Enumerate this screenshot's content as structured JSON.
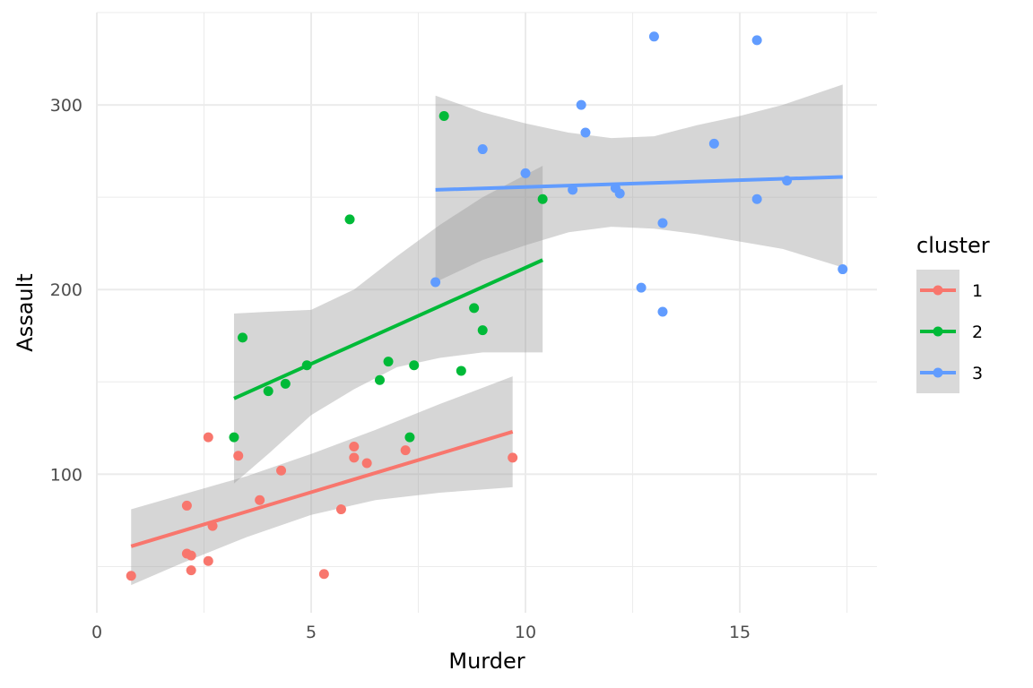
{
  "chart_data": {
    "type": "scatter",
    "xlabel": "Murder",
    "ylabel": "Assault",
    "xlim": [
      0,
      18.2
    ],
    "ylim": [
      25,
      350
    ],
    "x_ticks": [
      0,
      5,
      10,
      15
    ],
    "y_ticks": [
      100,
      200,
      300
    ],
    "grid": true,
    "legend": {
      "title": "cluster",
      "position": "right"
    },
    "series": [
      {
        "name": "1",
        "color": "#F8766D",
        "points": [
          [
            0.8,
            45
          ],
          [
            2.1,
            57
          ],
          [
            2.2,
            56
          ],
          [
            2.2,
            48
          ],
          [
            2.1,
            83
          ],
          [
            2.6,
            53
          ],
          [
            2.7,
            72
          ],
          [
            2.6,
            120
          ],
          [
            3.3,
            110
          ],
          [
            3.8,
            86
          ],
          [
            4.3,
            102
          ],
          [
            5.3,
            46
          ],
          [
            5.7,
            81
          ],
          [
            6.0,
            115
          ],
          [
            6.0,
            109
          ],
          [
            6.3,
            106
          ],
          [
            7.2,
            113
          ],
          [
            9.7,
            109
          ]
        ],
        "fit_line": [
          [
            0.8,
            61
          ],
          [
            9.7,
            123
          ]
        ],
        "ci_upper": [
          [
            0.8,
            81
          ],
          [
            2.0,
            89
          ],
          [
            3.5,
            99
          ],
          [
            5.0,
            111
          ],
          [
            6.5,
            124
          ],
          [
            8.0,
            138
          ],
          [
            9.7,
            153
          ]
        ],
        "ci_lower": [
          [
            0.8,
            40
          ],
          [
            2.0,
            52
          ],
          [
            3.5,
            66
          ],
          [
            5.0,
            78
          ],
          [
            6.5,
            86
          ],
          [
            8.0,
            90
          ],
          [
            9.7,
            93
          ]
        ]
      },
      {
        "name": "2",
        "color": "#00BA38",
        "points": [
          [
            3.2,
            120
          ],
          [
            3.4,
            174
          ],
          [
            4.0,
            145
          ],
          [
            4.4,
            149
          ],
          [
            4.9,
            159
          ],
          [
            5.9,
            238
          ],
          [
            6.6,
            151
          ],
          [
            6.8,
            161
          ],
          [
            7.3,
            120
          ],
          [
            7.4,
            159
          ],
          [
            8.1,
            294
          ],
          [
            8.5,
            156
          ],
          [
            8.8,
            190
          ],
          [
            9.0,
            178
          ],
          [
            10.4,
            249
          ]
        ],
        "fit_line": [
          [
            3.2,
            141
          ],
          [
            10.4,
            216
          ]
        ],
        "ci_upper": [
          [
            3.2,
            187
          ],
          [
            4.0,
            188
          ],
          [
            5.0,
            189
          ],
          [
            6.0,
            200
          ],
          [
            7.0,
            218
          ],
          [
            8.0,
            235
          ],
          [
            9.0,
            250
          ],
          [
            10.4,
            267
          ]
        ],
        "ci_lower": [
          [
            3.2,
            95
          ],
          [
            4.0,
            111
          ],
          [
            5.0,
            132
          ],
          [
            6.0,
            146
          ],
          [
            7.0,
            158
          ],
          [
            8.0,
            163
          ],
          [
            9.0,
            166
          ],
          [
            10.4,
            166
          ]
        ]
      },
      {
        "name": "3",
        "color": "#619CFF",
        "points": [
          [
            7.9,
            204
          ],
          [
            9.0,
            276
          ],
          [
            10.0,
            263
          ],
          [
            11.1,
            254
          ],
          [
            11.3,
            300
          ],
          [
            11.4,
            285
          ],
          [
            12.1,
            255
          ],
          [
            12.2,
            252
          ],
          [
            12.7,
            201
          ],
          [
            13.0,
            337
          ],
          [
            13.2,
            236
          ],
          [
            13.2,
            188
          ],
          [
            14.4,
            279
          ],
          [
            15.4,
            335
          ],
          [
            15.4,
            249
          ],
          [
            16.1,
            259
          ],
          [
            17.4,
            211
          ]
        ],
        "fit_line": [
          [
            7.9,
            254
          ],
          [
            17.4,
            261
          ]
        ],
        "ci_upper": [
          [
            7.9,
            305
          ],
          [
            9.0,
            296
          ],
          [
            10.0,
            290
          ],
          [
            11.0,
            285
          ],
          [
            12.0,
            282
          ],
          [
            13.0,
            283
          ],
          [
            14.0,
            289
          ],
          [
            15.0,
            294
          ],
          [
            16.0,
            300
          ],
          [
            17.4,
            311
          ]
        ],
        "ci_lower": [
          [
            7.9,
            204
          ],
          [
            9.0,
            216
          ],
          [
            10.0,
            224
          ],
          [
            11.0,
            231
          ],
          [
            12.0,
            234
          ],
          [
            13.0,
            233
          ],
          [
            14.0,
            230
          ],
          [
            15.0,
            226
          ],
          [
            16.0,
            222
          ],
          [
            17.4,
            212
          ]
        ]
      }
    ]
  }
}
